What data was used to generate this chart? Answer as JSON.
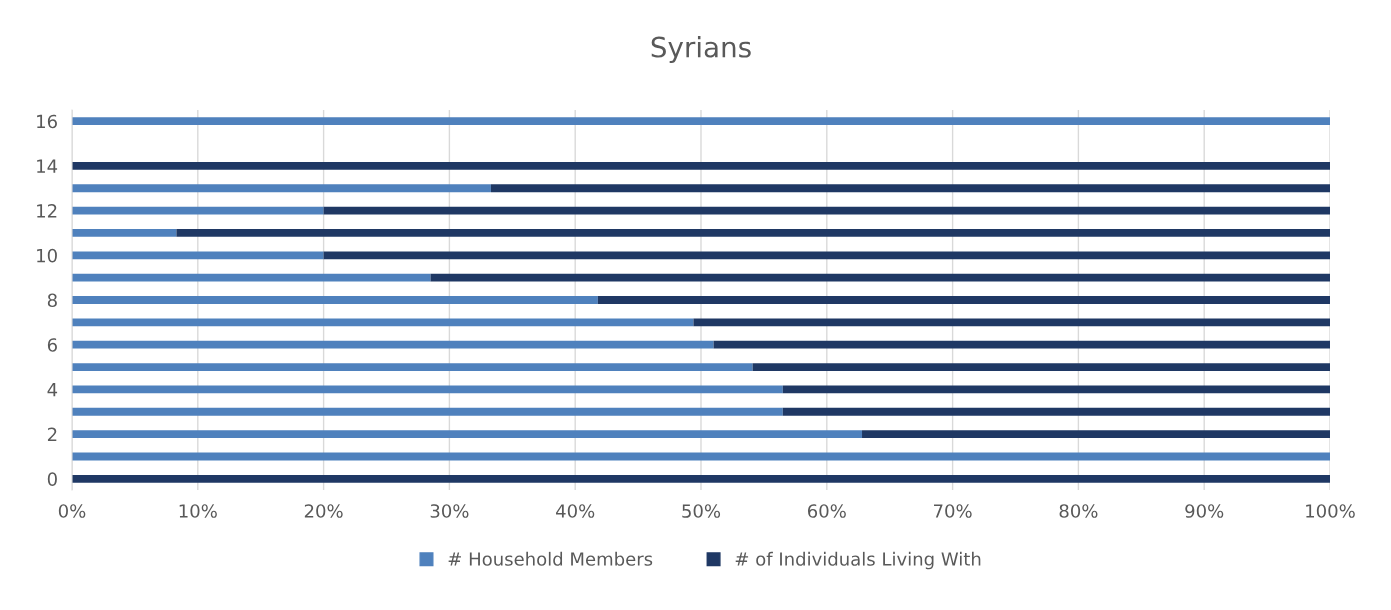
{
  "chart_data": {
    "type": "bar",
    "title": "Syrians",
    "orientation": "horizontal",
    "stacked": true,
    "categories": [
      "16",
      null,
      "14",
      null,
      "12",
      null,
      "10",
      null,
      "8",
      null,
      "6",
      null,
      "4",
      null,
      "2",
      null,
      "0"
    ],
    "series": [
      {
        "name": "# Household Members",
        "color": "#4f81bd",
        "values": [
          100,
          null,
          0,
          33.3,
          20,
          8.3,
          20,
          28.5,
          41.8,
          49.4,
          51,
          54.1,
          56.5,
          56.5,
          62.8,
          100,
          0
        ]
      },
      {
        "name": "# of Individuals Living With",
        "color": "#1f3864",
        "values": [
          0,
          null,
          100,
          66.7,
          80,
          91.7,
          80,
          71.5,
          58.2,
          50.6,
          49,
          45.9,
          43.5,
          43.5,
          37.2,
          0,
          100
        ]
      }
    ],
    "xlim": [
      0,
      100
    ],
    "xticks": [
      {
        "value": 0,
        "label": "0%"
      },
      {
        "value": 10,
        "label": "10%"
      },
      {
        "value": 20,
        "label": "20%"
      },
      {
        "value": 30,
        "label": "30%"
      },
      {
        "value": 40,
        "label": "40%"
      },
      {
        "value": 50,
        "label": "50%"
      },
      {
        "value": 60,
        "label": "60%"
      },
      {
        "value": 70,
        "label": "70%"
      },
      {
        "value": 80,
        "label": "80%"
      },
      {
        "value": 90,
        "label": "90%"
      },
      {
        "value": 100,
        "label": "100%"
      }
    ],
    "grid": "x",
    "legend": "bottom"
  }
}
